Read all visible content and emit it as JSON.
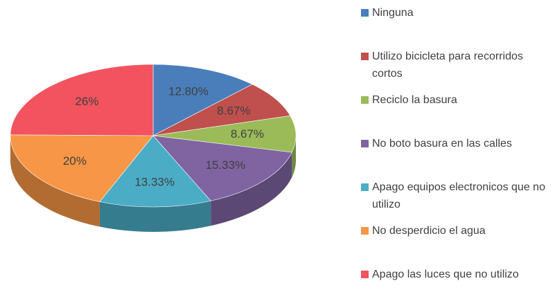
{
  "chart_data": {
    "type": "pie",
    "categories": [
      "Ninguna",
      "Utilizo bicicleta para recorridos cortos",
      "Reciclo la basura",
      "No boto basura en las calles",
      "Apago equipos electronicos que no utilizo",
      "No desperdicio el agua",
      "Apago las luces que no utilizo"
    ],
    "values": [
      12.8,
      8.67,
      8.67,
      15.33,
      13.33,
      20,
      26
    ],
    "value_labels": [
      "12.80%",
      "8.67%",
      "8.67%",
      "15.33%",
      "13.33%",
      "20%",
      "26%"
    ],
    "colors": [
      "#4a7ebb",
      "#c0504d",
      "#9bbb59",
      "#8064a2",
      "#4bacc6",
      "#f79646",
      "#f2535f"
    ],
    "legend": "right"
  }
}
